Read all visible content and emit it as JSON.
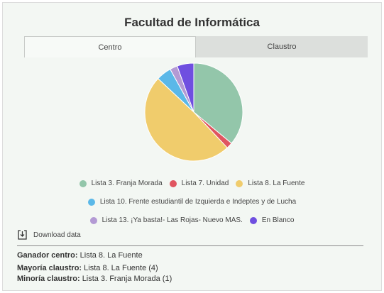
{
  "header": {
    "title": "Facultad de Informática"
  },
  "tabs": [
    {
      "label": "Centro",
      "active": true
    },
    {
      "label": "Claustro",
      "active": false
    }
  ],
  "chart_data": {
    "type": "pie",
    "series": [
      {
        "name": "Lista 3. Franja Morada",
        "value": 36,
        "color": "#93c6aa"
      },
      {
        "name": "Lista 7. Unidad",
        "value": 2,
        "color": "#e05560"
      },
      {
        "name": "Lista 8. La Fuente",
        "value": 49,
        "color": "#f0cc6c"
      },
      {
        "name": "Lista 10. Frente estudiantil de Izquierda e Indeptes y de Lucha",
        "value": 5,
        "color": "#5bb8e8"
      },
      {
        "name": "Lista 13. ¡Ya basta!- Las Rojas- Nuevo MAS.",
        "value": 2.5,
        "color": "#b39ad4"
      },
      {
        "name": "En Blanco",
        "value": 5.5,
        "color": "#6f4fe0"
      }
    ]
  },
  "download": {
    "label": "Download data"
  },
  "results": {
    "winner_label": "Ganador centro:",
    "winner_value": "Lista 8. La Fuente",
    "majority_label": "Mayoría claustro:",
    "majority_value": "Lista 8. La Fuente (4)",
    "minority_label": "Minoría claustro:",
    "minority_value": "Lista 3. Franja Morada (1)"
  }
}
